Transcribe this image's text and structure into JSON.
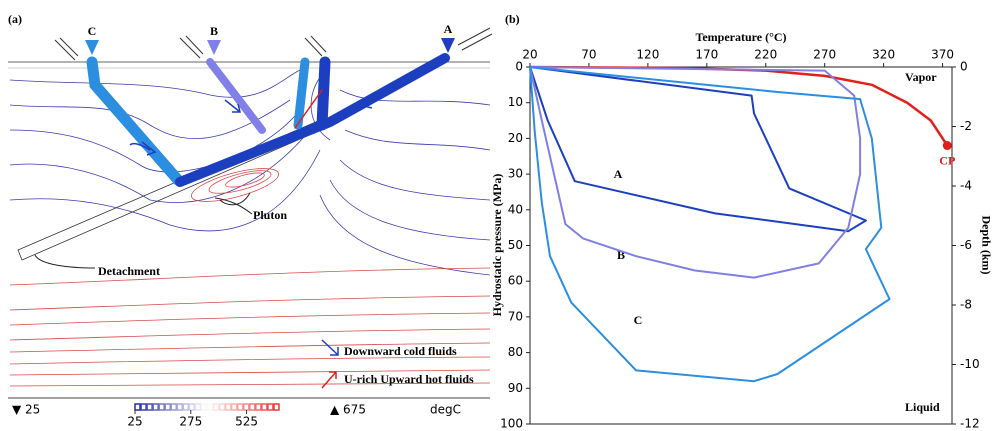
{
  "panel_a": {
    "label": "(a)",
    "paths": [
      "C",
      "B",
      "A"
    ],
    "pluton": "Pluton",
    "detachment": "Detachment",
    "legend": [
      "Downward cold fluids",
      "U-rich Upward hot fluids"
    ],
    "colorbar": {
      "min_label": "▼ 25",
      "max_label": "▲ 675",
      "unit": "degC",
      "lim": [
        25,
        675
      ],
      "ticks": [
        25,
        275,
        525
      ]
    }
  },
  "chart_data": {
    "type": "line",
    "panel": "(b)",
    "x_label": "Temperature (°C)",
    "y_label": "Hydrostatic pressure (MPa)",
    "y2_label": "Depth (km)",
    "xlim": [
      20,
      378
    ],
    "xticks": [
      20,
      70,
      120,
      170,
      220,
      270,
      320,
      370
    ],
    "ylim": [
      0,
      100
    ],
    "yticks": [
      0,
      10,
      20,
      30,
      40,
      50,
      60,
      70,
      80,
      90,
      100
    ],
    "y2lim": [
      0,
      -12
    ],
    "y2ticks": [
      0,
      -2,
      -4,
      -6,
      -8,
      -10,
      -12
    ],
    "annotations": [
      "Vapor",
      "Liquid"
    ],
    "saturation_curve": {
      "color": "#e0201b",
      "x": [
        20,
        150,
        220,
        270,
        310,
        340,
        360,
        374
      ],
      "values": [
        0,
        0.3,
        1,
        2.5,
        5,
        10,
        15,
        22
      ]
    },
    "critical_point": {
      "label": "CP",
      "x": 374,
      "y": 22
    },
    "series": [
      {
        "name": "A",
        "color": "#1c3fbf",
        "x": [
          20,
          35,
          58,
          177,
          290,
          305,
          240,
          210,
          208,
          20
        ],
        "values": [
          0,
          15,
          32,
          41,
          46,
          43,
          34,
          13,
          8,
          0
        ]
      },
      {
        "name": "B",
        "color": "#7f7fe6",
        "x": [
          20,
          30,
          50,
          65,
          110,
          160,
          210,
          265,
          290,
          300,
          300,
          295,
          270,
          20
        ],
        "values": [
          0,
          15,
          44,
          48,
          53,
          57,
          59,
          55,
          45,
          30,
          20,
          8,
          1,
          0
        ]
      },
      {
        "name": "C",
        "color": "#2b8ee0",
        "x": [
          20,
          24,
          30,
          37,
          55,
          110,
          210,
          230,
          325,
          305,
          318,
          310,
          300,
          230,
          20
        ],
        "values": [
          0,
          18,
          38,
          53,
          66,
          85,
          88,
          86,
          65,
          51,
          45,
          20,
          9,
          7,
          0
        ]
      }
    ]
  }
}
